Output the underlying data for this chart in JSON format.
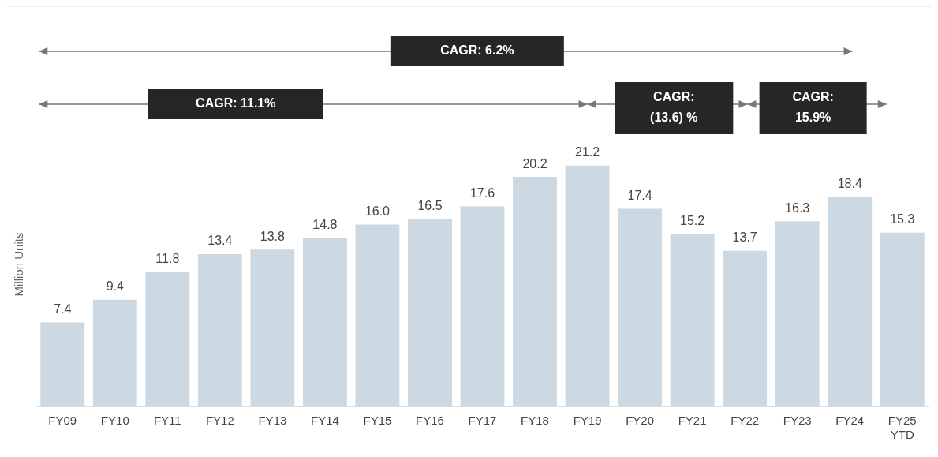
{
  "chart_data": {
    "type": "bar",
    "ylabel": "Million Units",
    "categories": [
      "FY09",
      "FY10",
      "FY11",
      "FY12",
      "FY13",
      "FY14",
      "FY15",
      "FY16",
      "FY17",
      "FY18",
      "FY19",
      "FY20",
      "FY21",
      "FY22",
      "FY23",
      "FY24",
      "FY25 YTD"
    ],
    "values": [
      7.4,
      9.4,
      11.8,
      13.4,
      13.8,
      14.8,
      16.0,
      16.5,
      17.6,
      20.2,
      21.2,
      17.4,
      15.2,
      13.7,
      16.3,
      18.4,
      15.3
    ],
    "value_labels": [
      "7.4",
      "9.4",
      "11.8",
      "13.4",
      "13.8",
      "14.8",
      "16.0",
      "16.5",
      "17.6",
      "20.2",
      "21.2",
      "17.4",
      "15.2",
      "13.7",
      "16.3",
      "18.4",
      "15.3"
    ],
    "color": "#ccd9e2",
    "relative": false,
    "grid": false,
    "legend": false,
    "annotations": [
      "CAGR: 6.2%",
      "CAGR: 11.1%",
      "CAGR: (13.6) %",
      "CAGR: 15.9%"
    ]
  }
}
